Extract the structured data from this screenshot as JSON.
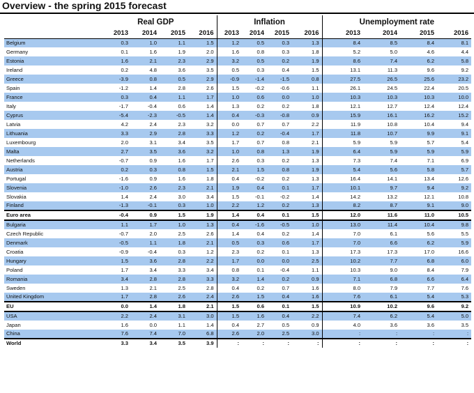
{
  "title": "Overview - the spring 2015 forecast",
  "groups": [
    "Real GDP",
    "Inflation",
    "Unemployment rate"
  ],
  "gdp_years": [
    "2013",
    "2014",
    "2015",
    "2016"
  ],
  "inf_years": [
    "2013",
    "2014",
    "2015",
    "2016"
  ],
  "unemp_years": [
    "2013",
    "2014",
    "2015",
    "2016"
  ],
  "shade_color": "#a7c9ef",
  "rows": [
    {
      "c": "Belgium",
      "g": [
        "0.3",
        "1.0",
        "1.1",
        "1.5"
      ],
      "i": [
        "1.2",
        "0.5",
        "0.3",
        "1.3"
      ],
      "u": [
        "8.4",
        "8.5",
        "8.4",
        "8.1"
      ],
      "s": 1
    },
    {
      "c": "Germany",
      "g": [
        "0.1",
        "1.6",
        "1.9",
        "2.0"
      ],
      "i": [
        "1.6",
        "0.8",
        "0.3",
        "1.8"
      ],
      "u": [
        "5.2",
        "5.0",
        "4.6",
        "4.4"
      ],
      "s": 0
    },
    {
      "c": "Estonia",
      "g": [
        "1.6",
        "2.1",
        "2.3",
        "2.9"
      ],
      "i": [
        "3.2",
        "0.5",
        "0.2",
        "1.9"
      ],
      "u": [
        "8.6",
        "7.4",
        "6.2",
        "5.8"
      ],
      "s": 1
    },
    {
      "c": "Ireland",
      "g": [
        "0.2",
        "4.8",
        "3.6",
        "3.5"
      ],
      "i": [
        "0.5",
        "0.3",
        "0.4",
        "1.5"
      ],
      "u": [
        "13.1",
        "11.3",
        "9.6",
        "9.2"
      ],
      "s": 0
    },
    {
      "c": "Greece",
      "g": [
        "-3.9",
        "0.8",
        "0.5",
        "2.9"
      ],
      "i": [
        "-0.9",
        "-1.4",
        "-1.5",
        "0.8"
      ],
      "u": [
        "27.5",
        "26.5",
        "25.6",
        "23.2"
      ],
      "s": 1
    },
    {
      "c": "Spain",
      "g": [
        "-1.2",
        "1.4",
        "2.8",
        "2.6"
      ],
      "i": [
        "1.5",
        "-0.2",
        "-0.6",
        "1.1"
      ],
      "u": [
        "26.1",
        "24.5",
        "22.4",
        "20.5"
      ],
      "s": 0
    },
    {
      "c": "France",
      "g": [
        "0.3",
        "0.4",
        "1.1",
        "1.7"
      ],
      "i": [
        "1.0",
        "0.6",
        "0.0",
        "1.0"
      ],
      "u": [
        "10.3",
        "10.3",
        "10.3",
        "10.0"
      ],
      "s": 1
    },
    {
      "c": "Italy",
      "g": [
        "-1.7",
        "-0.4",
        "0.6",
        "1.4"
      ],
      "i": [
        "1.3",
        "0.2",
        "0.2",
        "1.8"
      ],
      "u": [
        "12.1",
        "12.7",
        "12.4",
        "12.4"
      ],
      "s": 0
    },
    {
      "c": "Cyprus",
      "g": [
        "-5.4",
        "-2.3",
        "-0.5",
        "1.4"
      ],
      "i": [
        "0.4",
        "-0.3",
        "-0.8",
        "0.9"
      ],
      "u": [
        "15.9",
        "16.1",
        "16.2",
        "15.2"
      ],
      "s": 1
    },
    {
      "c": "Latvia",
      "g": [
        "4.2",
        "2.4",
        "2.3",
        "3.2"
      ],
      "i": [
        "0.0",
        "0.7",
        "0.7",
        "2.2"
      ],
      "u": [
        "11.9",
        "10.8",
        "10.4",
        "9.4"
      ],
      "s": 0
    },
    {
      "c": "Lithuania",
      "g": [
        "3.3",
        "2.9",
        "2.8",
        "3.3"
      ],
      "i": [
        "1.2",
        "0.2",
        "-0.4",
        "1.7"
      ],
      "u": [
        "11.8",
        "10.7",
        "9.9",
        "9.1"
      ],
      "s": 1
    },
    {
      "c": "Luxembourg",
      "g": [
        "2.0",
        "3.1",
        "3.4",
        "3.5"
      ],
      "i": [
        "1.7",
        "0.7",
        "0.8",
        "2.1"
      ],
      "u": [
        "5.9",
        "5.9",
        "5.7",
        "5.4"
      ],
      "s": 0
    },
    {
      "c": "Malta",
      "g": [
        "2.7",
        "3.5",
        "3.6",
        "3.2"
      ],
      "i": [
        "1.0",
        "0.8",
        "1.3",
        "1.9"
      ],
      "u": [
        "6.4",
        "5.9",
        "5.9",
        "5.9"
      ],
      "s": 1
    },
    {
      "c": "Netherlands",
      "g": [
        "-0.7",
        "0.9",
        "1.6",
        "1.7"
      ],
      "i": [
        "2.6",
        "0.3",
        "0.2",
        "1.3"
      ],
      "u": [
        "7.3",
        "7.4",
        "7.1",
        "6.9"
      ],
      "s": 0
    },
    {
      "c": "Austria",
      "g": [
        "0.2",
        "0.3",
        "0.8",
        "1.5"
      ],
      "i": [
        "2.1",
        "1.5",
        "0.8",
        "1.9"
      ],
      "u": [
        "5.4",
        "5.6",
        "5.8",
        "5.7"
      ],
      "s": 1
    },
    {
      "c": "Portugal",
      "g": [
        "-1.6",
        "0.9",
        "1.6",
        "1.8"
      ],
      "i": [
        "0.4",
        "-0.2",
        "0.2",
        "1.3"
      ],
      "u": [
        "16.4",
        "14.1",
        "13.4",
        "12.6"
      ],
      "s": 0
    },
    {
      "c": "Slovenia",
      "g": [
        "-1.0",
        "2.6",
        "2.3",
        "2.1"
      ],
      "i": [
        "1.9",
        "0.4",
        "0.1",
        "1.7"
      ],
      "u": [
        "10.1",
        "9.7",
        "9.4",
        "9.2"
      ],
      "s": 1
    },
    {
      "c": "Slovakia",
      "g": [
        "1.4",
        "2.4",
        "3.0",
        "3.4"
      ],
      "i": [
        "1.5",
        "-0.1",
        "-0.2",
        "1.4"
      ],
      "u": [
        "14.2",
        "13.2",
        "12.1",
        "10.8"
      ],
      "s": 0
    },
    {
      "c": "Finland",
      "g": [
        "-1.3",
        "-0.1",
        "0.3",
        "1.0"
      ],
      "i": [
        "2.2",
        "1.2",
        "0.2",
        "1.3"
      ],
      "u": [
        "8.2",
        "8.7",
        "9.1",
        "9.0"
      ],
      "s": 1
    },
    {
      "c": "Euro area",
      "g": [
        "-0.4",
        "0.9",
        "1.5",
        "1.9"
      ],
      "i": [
        "1.4",
        "0.4",
        "0.1",
        "1.5"
      ],
      "u": [
        "12.0",
        "11.6",
        "11.0",
        "10.5"
      ],
      "s": 0,
      "b": 1,
      "t": 1
    },
    {
      "c": "Bulgaria",
      "g": [
        "1.1",
        "1.7",
        "1.0",
        "1.3"
      ],
      "i": [
        "0.4",
        "-1.6",
        "-0.5",
        "1.0"
      ],
      "u": [
        "13.0",
        "11.4",
        "10.4",
        "9.8"
      ],
      "s": 1,
      "t": 1
    },
    {
      "c": "Czech Republic",
      "g": [
        "-0.7",
        "2.0",
        "2.5",
        "2.6"
      ],
      "i": [
        "1.4",
        "0.4",
        "0.2",
        "1.4"
      ],
      "u": [
        "7.0",
        "6.1",
        "5.6",
        "5.5"
      ],
      "s": 0
    },
    {
      "c": "Denmark",
      "g": [
        "-0.5",
        "1.1",
        "1.8",
        "2.1"
      ],
      "i": [
        "0.5",
        "0.3",
        "0.6",
        "1.7"
      ],
      "u": [
        "7.0",
        "6.6",
        "6.2",
        "5.9"
      ],
      "s": 1
    },
    {
      "c": "Croatia",
      "g": [
        "-0.9",
        "-0.4",
        "0.3",
        "1.2"
      ],
      "i": [
        "2.3",
        "0.2",
        "0.1",
        "1.3"
      ],
      "u": [
        "17.3",
        "17.3",
        "17.0",
        "16.6"
      ],
      "s": 0
    },
    {
      "c": "Hungary",
      "g": [
        "1.5",
        "3.6",
        "2.8",
        "2.2"
      ],
      "i": [
        "1.7",
        "0.0",
        "0.0",
        "2.5"
      ],
      "u": [
        "10.2",
        "7.7",
        "6.8",
        "6.0"
      ],
      "s": 1
    },
    {
      "c": "Poland",
      "g": [
        "1.7",
        "3.4",
        "3.3",
        "3.4"
      ],
      "i": [
        "0.8",
        "0.1",
        "-0.4",
        "1.1"
      ],
      "u": [
        "10.3",
        "9.0",
        "8.4",
        "7.9"
      ],
      "s": 0
    },
    {
      "c": "Romania",
      "g": [
        "3.4",
        "2.8",
        "2.8",
        "3.3"
      ],
      "i": [
        "3.2",
        "1.4",
        "0.2",
        "0.9"
      ],
      "u": [
        "7.1",
        "6.8",
        "6.6",
        "6.4"
      ],
      "s": 1
    },
    {
      "c": "Sweden",
      "g": [
        "1.3",
        "2.1",
        "2.5",
        "2.8"
      ],
      "i": [
        "0.4",
        "0.2",
        "0.7",
        "1.6"
      ],
      "u": [
        "8.0",
        "7.9",
        "7.7",
        "7.6"
      ],
      "s": 0
    },
    {
      "c": "United Kingdom",
      "g": [
        "1.7",
        "2.8",
        "2.6",
        "2.4"
      ],
      "i": [
        "2.6",
        "1.5",
        "0.4",
        "1.6"
      ],
      "u": [
        "7.6",
        "6.1",
        "5.4",
        "5.3"
      ],
      "s": 1
    },
    {
      "c": "EU",
      "g": [
        "0.0",
        "1.4",
        "1.8",
        "2.1"
      ],
      "i": [
        "1.5",
        "0.6",
        "0.1",
        "1.5"
      ],
      "u": [
        "10.9",
        "10.2",
        "9.6",
        "9.2"
      ],
      "s": 0,
      "b": 1,
      "t": 1
    },
    {
      "c": "USA",
      "g": [
        "2.2",
        "2.4",
        "3.1",
        "3.0"
      ],
      "i": [
        "1.5",
        "1.6",
        "0.4",
        "2.2"
      ],
      "u": [
        "7.4",
        "6.2",
        "5.4",
        "5.0"
      ],
      "s": 1,
      "t": 1
    },
    {
      "c": "Japan",
      "g": [
        "1.6",
        "0.0",
        "1.1",
        "1.4"
      ],
      "i": [
        "0.4",
        "2.7",
        "0.5",
        "0.9"
      ],
      "u": [
        "4.0",
        "3.6",
        "3.6",
        "3.5"
      ],
      "s": 0
    },
    {
      "c": "China",
      "g": [
        "7.6",
        "7.4",
        "7.0",
        "6.8"
      ],
      "i": [
        "2.6",
        "2.0",
        "2.5",
        "3.0"
      ],
      "u": [
        ":",
        ":",
        ":",
        ":"
      ],
      "s": 1
    },
    {
      "c": "World",
      "g": [
        "3.3",
        "3.4",
        "3.5",
        "3.9"
      ],
      "i": [
        ":",
        ":",
        ":",
        ":"
      ],
      "u": [
        ":",
        ":",
        ":",
        ":"
      ],
      "s": 0,
      "b": 1,
      "t": 1
    }
  ]
}
